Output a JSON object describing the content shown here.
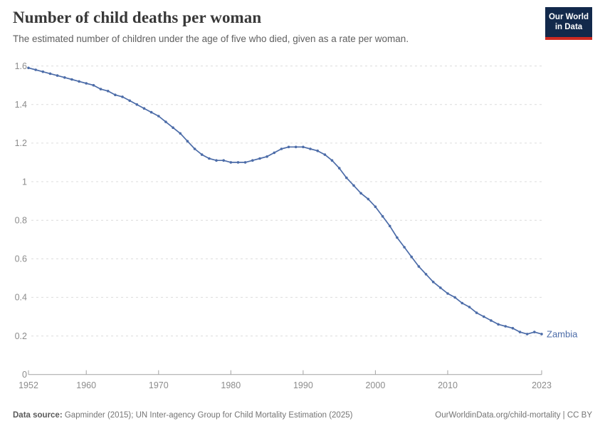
{
  "header": {
    "title": "Number of child deaths per woman",
    "subtitle": "The estimated number of children under the age of five who died, given as a rate per woman."
  },
  "logo": {
    "line1": "Our World",
    "line2": "in Data",
    "bg_color": "#12294B",
    "accent_color": "#CE2A21"
  },
  "chart_data": {
    "type": "line",
    "title": "Number of child deaths per woman",
    "xlabel": "",
    "ylabel": "",
    "xlim": [
      1952,
      2023
    ],
    "ylim": [
      0,
      1.6
    ],
    "grid": "horizontal-dashed",
    "x_ticks": [
      1952,
      1960,
      1970,
      1980,
      1990,
      2000,
      2010,
      2023
    ],
    "y_ticks": [
      {
        "value": 0,
        "label": "0"
      },
      {
        "value": 0.2,
        "label": "0.2"
      },
      {
        "value": 0.4,
        "label": "0.4"
      },
      {
        "value": 0.6,
        "label": "0.6"
      },
      {
        "value": 0.8,
        "label": "0.8"
      },
      {
        "value": 1,
        "label": "1"
      },
      {
        "value": 1.2,
        "label": "1.2"
      },
      {
        "value": 1.4,
        "label": "1.4"
      },
      {
        "value": 1.6,
        "label": "1.6"
      }
    ],
    "series": [
      {
        "name": "Zambia",
        "color": "#4C6CA8",
        "x": [
          1952,
          1953,
          1954,
          1955,
          1956,
          1957,
          1958,
          1959,
          1960,
          1961,
          1962,
          1963,
          1964,
          1965,
          1966,
          1967,
          1968,
          1969,
          1970,
          1971,
          1972,
          1973,
          1974,
          1975,
          1976,
          1977,
          1978,
          1979,
          1980,
          1981,
          1982,
          1983,
          1984,
          1985,
          1986,
          1987,
          1988,
          1989,
          1990,
          1991,
          1992,
          1993,
          1994,
          1995,
          1996,
          1997,
          1998,
          1999,
          2000,
          2001,
          2002,
          2003,
          2004,
          2005,
          2006,
          2007,
          2008,
          2009,
          2010,
          2011,
          2012,
          2013,
          2014,
          2015,
          2016,
          2017,
          2018,
          2019,
          2020,
          2021,
          2022,
          2023
        ],
        "values": [
          1.59,
          1.58,
          1.57,
          1.56,
          1.55,
          1.54,
          1.53,
          1.52,
          1.51,
          1.5,
          1.48,
          1.47,
          1.45,
          1.44,
          1.42,
          1.4,
          1.38,
          1.36,
          1.34,
          1.31,
          1.28,
          1.25,
          1.21,
          1.17,
          1.14,
          1.12,
          1.11,
          1.11,
          1.1,
          1.1,
          1.1,
          1.11,
          1.12,
          1.13,
          1.15,
          1.17,
          1.18,
          1.18,
          1.18,
          1.17,
          1.16,
          1.14,
          1.11,
          1.07,
          1.02,
          0.98,
          0.94,
          0.91,
          0.87,
          0.82,
          0.77,
          0.71,
          0.66,
          0.61,
          0.56,
          0.52,
          0.48,
          0.45,
          0.42,
          0.4,
          0.37,
          0.35,
          0.32,
          0.3,
          0.28,
          0.26,
          0.25,
          0.24,
          0.22,
          0.21,
          0.22,
          0.21
        ]
      }
    ],
    "legend_position": "end-of-line-label"
  },
  "footer": {
    "source_label": "Data source:",
    "source_text": " Gapminder (2015); UN Inter-agency Group for Child Mortality Estimation (2025)",
    "credit": "OurWorldinData.org/child-mortality | CC BY"
  }
}
